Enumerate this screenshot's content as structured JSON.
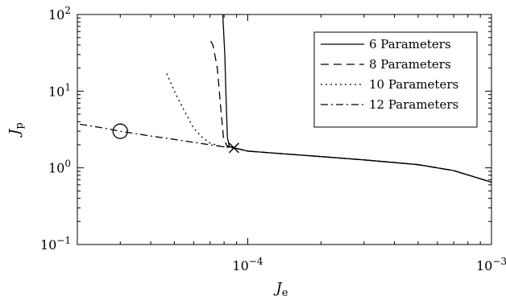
{
  "chart_data": {
    "type": "line",
    "xscale": "log",
    "yscale": "log",
    "xlim": [
      2e-05,
      0.001
    ],
    "ylim": [
      0.1,
      100
    ],
    "xlabel": "J",
    "xlabel_sub": "e",
    "ylabel": "J",
    "ylabel_sub": "p",
    "x_ticks": [
      {
        "value": 0.0001,
        "base": "10",
        "exp": "−4"
      },
      {
        "value": 0.001,
        "base": "10",
        "exp": "−3"
      }
    ],
    "y_ticks": [
      {
        "value": 0.1,
        "base": "10",
        "exp": "−1"
      },
      {
        "value": 1,
        "base": "10",
        "exp": "0"
      },
      {
        "value": 10,
        "base": "10",
        "exp": "1"
      },
      {
        "value": 100,
        "base": "10",
        "exp": "2"
      }
    ],
    "legend_position": "top-right",
    "series": [
      {
        "name": "6 Parameters",
        "style": "solid",
        "points": [
          [
            7.9e-05,
            100
          ],
          [
            8.05e-05,
            30
          ],
          [
            8.15e-05,
            8
          ],
          [
            8.25e-05,
            2.5
          ],
          [
            8.4e-05,
            1.9
          ],
          [
            8.78e-05,
            1.82
          ],
          [
            0.0001,
            1.65
          ],
          [
            0.00015,
            1.5
          ],
          [
            0.0002,
            1.4
          ],
          [
            0.0003,
            1.27
          ],
          [
            0.0005,
            1.1
          ],
          [
            0.0007,
            0.92
          ],
          [
            0.001,
            0.65
          ]
        ]
      },
      {
        "name": "8 Parameters",
        "style": "dashed",
        "points": [
          [
            7.05e-05,
            45
          ],
          [
            7.2e-05,
            40
          ],
          [
            7.5e-05,
            20
          ],
          [
            7.75e-05,
            6
          ],
          [
            7.95e-05,
            2.5
          ],
          [
            8.2e-05,
            1.95
          ],
          [
            8.78e-05,
            1.82
          ],
          [
            0.0001,
            1.65
          ],
          [
            0.00015,
            1.5
          ],
          [
            0.0002,
            1.4
          ],
          [
            0.0003,
            1.27
          ],
          [
            0.0005,
            1.1
          ],
          [
            0.0007,
            0.92
          ],
          [
            0.001,
            0.65
          ]
        ]
      },
      {
        "name": "10 Parameters",
        "style": "dotted",
        "points": [
          [
            4.65e-05,
            17
          ],
          [
            5e-05,
            10
          ],
          [
            5.5e-05,
            5.5
          ],
          [
            6e-05,
            3.3
          ],
          [
            6.5e-05,
            2.5
          ],
          [
            7e-05,
            2.1
          ],
          [
            7.8e-05,
            1.9
          ],
          [
            8.78e-05,
            1.82
          ],
          [
            0.0001,
            1.65
          ],
          [
            0.00015,
            1.5
          ],
          [
            0.0002,
            1.4
          ],
          [
            0.0003,
            1.27
          ],
          [
            0.0005,
            1.1
          ],
          [
            0.0007,
            0.92
          ],
          [
            0.001,
            0.65
          ]
        ]
      },
      {
        "name": "12 Parameters",
        "style": "dashdot",
        "points": [
          [
            2.05e-05,
            3.7
          ],
          [
            2.5e-05,
            3.35
          ],
          [
            3e-05,
            3.0
          ],
          [
            4e-05,
            2.6
          ],
          [
            5e-05,
            2.35
          ],
          [
            6e-05,
            2.15
          ],
          [
            7e-05,
            2.0
          ],
          [
            7.8e-05,
            1.9
          ],
          [
            8.78e-05,
            1.82
          ],
          [
            0.0001,
            1.65
          ],
          [
            0.00015,
            1.5
          ],
          [
            0.0002,
            1.4
          ],
          [
            0.0003,
            1.27
          ],
          [
            0.0005,
            1.1
          ],
          [
            0.0007,
            0.92
          ],
          [
            0.001,
            0.65
          ]
        ]
      }
    ],
    "markers": [
      {
        "shape": "circle",
        "x": 3e-05,
        "y": 3.0
      },
      {
        "shape": "cross",
        "x": 8.78e-05,
        "y": 1.82
      }
    ],
    "colors": {
      "line": "#000000",
      "background": "#ffffff"
    }
  }
}
